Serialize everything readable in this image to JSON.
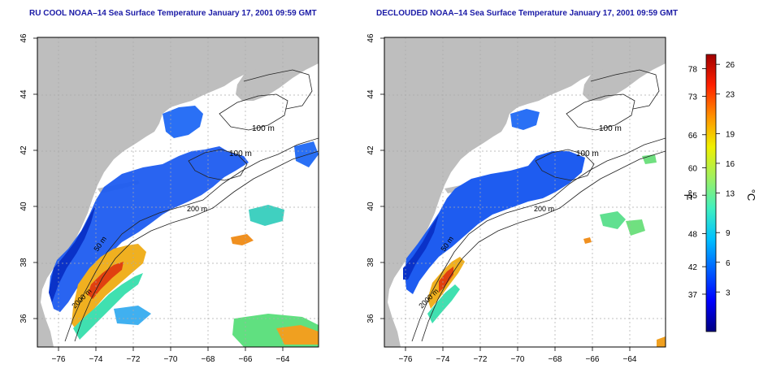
{
  "panels": [
    {
      "title": "RU COOL NOAA–14 Sea Surface Temperature January 17, 2001 09:59 GMT",
      "kind": "cloudy",
      "contours": [
        "100 m",
        "100 m",
        "200 m",
        "50 m",
        "2000 m"
      ]
    },
    {
      "title": "DECLOUDED NOAA–14 Sea Surface Temperature January 17, 2001 09:59 GMT",
      "kind": "declouded",
      "contours": [
        "100 m",
        "100 m",
        "200 m",
        "50 m",
        "2000 m"
      ]
    }
  ],
  "axes": {
    "x_ticks": [
      "−76",
      "−74",
      "−72",
      "−70",
      "−68",
      "−66",
      "−64"
    ],
    "y_ticks": [
      "36",
      "38",
      "40",
      "42",
      "44",
      "46"
    ]
  },
  "colorbar": {
    "f_label": "°F",
    "c_label": "°C",
    "f_ticks": [
      "78",
      "73",
      "66",
      "60",
      "55",
      "48",
      "42",
      "37"
    ],
    "c_ticks": [
      "26",
      "23",
      "19",
      "16",
      "13",
      "9",
      "6",
      "3"
    ],
    "c_range": [
      -1,
      27
    ],
    "colors": [
      "#000080",
      "#0000ff",
      "#0060ff",
      "#00c0ff",
      "#40f0c0",
      "#a0f060",
      "#f0f000",
      "#ff9000",
      "#ff2000",
      "#a00000"
    ]
  }
}
